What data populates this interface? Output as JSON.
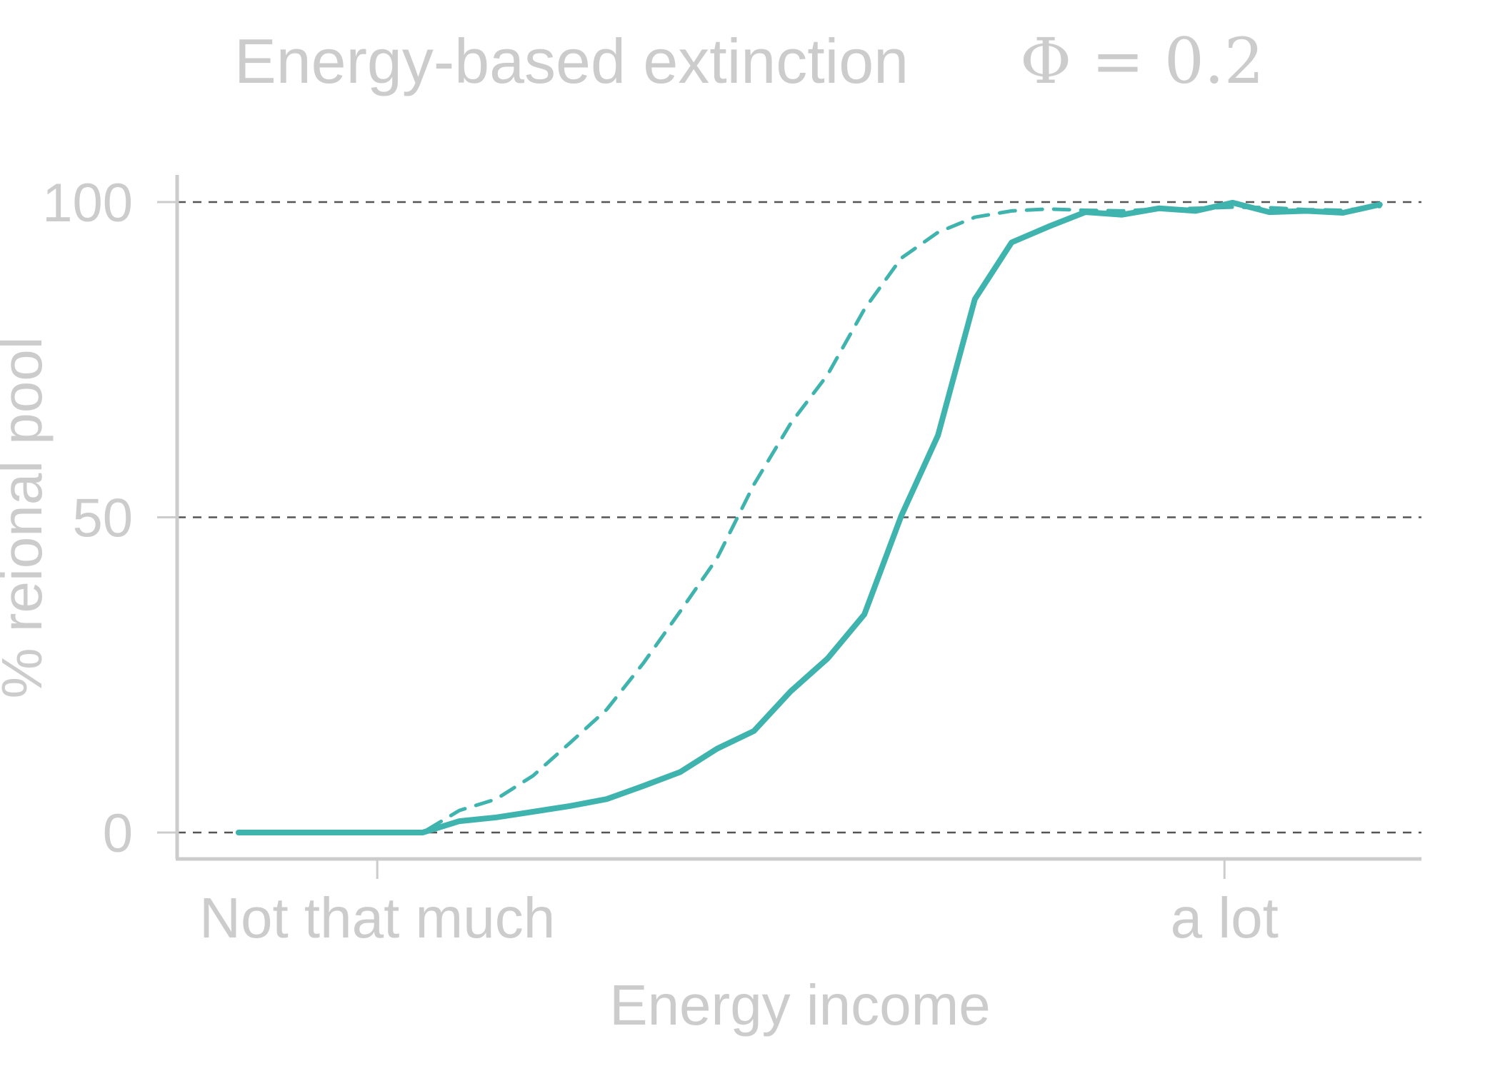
{
  "chart_data": {
    "type": "line",
    "title": "Energy-based extinction",
    "subtitle": "Φ = 0.2",
    "xlabel": "Energy income",
    "ylabel": "% reional pool",
    "x_tick_labels": [
      "Not that much",
      "a lot"
    ],
    "x_tick_positions": [
      4.97,
      27.98
    ],
    "y_ticks": [
      0,
      50,
      100
    ],
    "ylim": [
      -4,
      104
    ],
    "xlim": [
      0,
      33
    ],
    "grid": "horizontal dashed",
    "colors": {
      "line": "#3fb3ae",
      "grid": "#555555",
      "text": "#cccccc"
    },
    "x": [
      1.2,
      2.2,
      3.2,
      4.2,
      5.2,
      6.2,
      7.2,
      8.2,
      9.2,
      10.2,
      11.2,
      12.2,
      13.2,
      14.2,
      15.2,
      16.2,
      17.2,
      18.2,
      19.2,
      20.2,
      21.2,
      22.2,
      23.2,
      24.2,
      25.2,
      26.2,
      27.2,
      28.2,
      29.2,
      30.2,
      31.2,
      32.2
    ],
    "series": [
      {
        "style": "solid",
        "values": [
          0,
          0,
          0,
          0,
          0,
          0,
          1.8,
          2.4,
          3.3,
          4.2,
          5.3,
          7.4,
          9.6,
          13.3,
          16.1,
          22.4,
          27.6,
          34.6,
          50.2,
          63.0,
          84.6,
          93.6,
          96.1,
          98.4,
          98.0,
          99.0,
          98.6,
          99.9,
          98.4,
          98.6,
          98.3,
          99.6
        ]
      },
      {
        "style": "dashed",
        "values": [
          0,
          0,
          0,
          0,
          0,
          0,
          3.5,
          5.3,
          9.0,
          14.2,
          19.5,
          26.9,
          35.1,
          43.5,
          55.2,
          64.9,
          72.6,
          83.0,
          91.1,
          95.2,
          97.6,
          98.6,
          98.9,
          98.7,
          98.6,
          98.9,
          99.0,
          99.2,
          99.1,
          98.8,
          98.7,
          99.3
        ]
      }
    ]
  }
}
